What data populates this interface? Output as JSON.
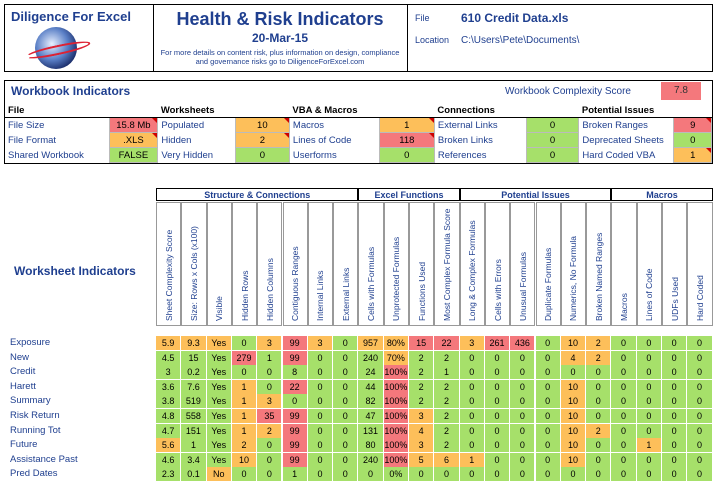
{
  "header": {
    "logo_title": "Diligence For Excel",
    "title": "Health & Risk Indicators",
    "date": "20-Mar-15",
    "note": "For more details on content risk, plus information on design, compliance and governance risks go to DiligenceForExcel.com",
    "file_label": "File",
    "file_value": "610 Credit Data.xls",
    "location_label": "Location",
    "location_value": "C:\\Users\\Pete\\Documents\\"
  },
  "workbook": {
    "title": "Workbook Indicators",
    "score_label": "Workbook Complexity Score",
    "score_value": "7.8",
    "groups": [
      {
        "title": "File",
        "items": [
          {
            "label": "File Size",
            "value": "15.8 Mb",
            "color": "red",
            "flag": true
          },
          {
            "label": "File Format",
            "value": ".XLS",
            "color": "yel",
            "flag": true
          },
          {
            "label": "Shared Workbook",
            "value": "FALSE",
            "color": "grn",
            "flag": false
          }
        ]
      },
      {
        "title": "Worksheets",
        "items": [
          {
            "label": "Populated",
            "value": "10",
            "color": "yel",
            "flag": true
          },
          {
            "label": "Hidden",
            "value": "2",
            "color": "yel",
            "flag": true
          },
          {
            "label": "Very Hidden",
            "value": "0",
            "color": "grn",
            "flag": false
          }
        ]
      },
      {
        "title": "VBA & Macros",
        "items": [
          {
            "label": "Macros",
            "value": "1",
            "color": "yel",
            "flag": true
          },
          {
            "label": "Lines of Code",
            "value": "118",
            "color": "red",
            "flag": true
          },
          {
            "label": "Userforms",
            "value": "0",
            "color": "grn",
            "flag": false
          }
        ]
      },
      {
        "title": "Connections",
        "items": [
          {
            "label": "External Links",
            "value": "0",
            "color": "grn",
            "flag": false
          },
          {
            "label": "Broken Links",
            "value": "0",
            "color": "grn",
            "flag": false
          },
          {
            "label": "References",
            "value": "0",
            "color": "grn",
            "flag": false
          }
        ]
      },
      {
        "title": "Potential Issues",
        "items": [
          {
            "label": "Broken Ranges",
            "value": "9",
            "color": "red",
            "flag": true
          },
          {
            "label": "Deprecated Sheets",
            "value": "0",
            "color": "grn",
            "flag": false
          },
          {
            "label": "Hard Coded VBA",
            "value": "1",
            "color": "yel",
            "flag": true
          }
        ]
      }
    ]
  },
  "worksheets": {
    "title": "Worksheet Indicators",
    "groups": [
      "Structure & Connections",
      "Excel Functions",
      "Potential Issues",
      "Macros"
    ],
    "columns": [
      "Sheet Complexity Score",
      "Size: Rows x Cols   (x100)",
      "Visible",
      "Hidden Rows",
      "Hidden Columns",
      "Contiguous Ranges",
      "Internal Links",
      "External Links",
      "Cells with Formulas",
      "Unprotected Formulas",
      "Functions Used",
      "Most Complex Formula Score",
      "Long & Complex Formulas",
      "Cells with Errors",
      "Unusual Formulas",
      "Duplicate Formulas",
      "Numerics, No Formula",
      "Broken Named Ranges",
      "Macros",
      "Lines of Code",
      "UDFs Used",
      "Hard Coded"
    ],
    "rows": [
      {
        "name": "Exposure",
        "values": [
          "5.9",
          "9.3",
          "Yes",
          "0",
          "3",
          "99",
          "3",
          "0",
          "957",
          "80%",
          "15",
          "22",
          "3",
          "261",
          "436",
          "0",
          "10",
          "2",
          "0",
          "0",
          "0",
          "0"
        ],
        "colors": [
          "yel",
          "yel",
          "yel",
          "grn",
          "yel",
          "red",
          "yel",
          "grn",
          "yel",
          "yel",
          "red",
          "red",
          "yel",
          "red",
          "red",
          "grn",
          "yel",
          "yel",
          "grn",
          "grn",
          "grn",
          "grn"
        ]
      },
      {
        "name": "New",
        "values": [
          "4.5",
          "15",
          "Yes",
          "279",
          "1",
          "99",
          "0",
          "0",
          "240",
          "70%",
          "2",
          "2",
          "0",
          "0",
          "0",
          "0",
          "4",
          "2",
          "0",
          "0",
          "0",
          "0"
        ],
        "colors": [
          "grn",
          "grn",
          "grn",
          "red",
          "grn",
          "red",
          "grn",
          "grn",
          "grn",
          "yel",
          "grn",
          "grn",
          "grn",
          "grn",
          "grn",
          "grn",
          "yel",
          "yel",
          "grn",
          "grn",
          "grn",
          "grn"
        ]
      },
      {
        "name": "Credit",
        "values": [
          "3",
          "0.2",
          "Yes",
          "0",
          "0",
          "8",
          "0",
          "0",
          "24",
          "100%",
          "2",
          "1",
          "0",
          "0",
          "0",
          "0",
          "0",
          "0",
          "0",
          "0",
          "0",
          "0"
        ],
        "colors": [
          "grn",
          "grn",
          "grn",
          "grn",
          "grn",
          "grn",
          "grn",
          "grn",
          "grn",
          "red",
          "grn",
          "grn",
          "grn",
          "grn",
          "grn",
          "grn",
          "grn",
          "grn",
          "grn",
          "grn",
          "grn",
          "grn"
        ]
      },
      {
        "name": "Harett",
        "values": [
          "3.6",
          "7.6",
          "Yes",
          "1",
          "0",
          "22",
          "0",
          "0",
          "44",
          "100%",
          "2",
          "2",
          "0",
          "0",
          "0",
          "0",
          "10",
          "0",
          "0",
          "0",
          "0",
          "0"
        ],
        "colors": [
          "grn",
          "grn",
          "grn",
          "yel",
          "grn",
          "red",
          "grn",
          "grn",
          "grn",
          "red",
          "grn",
          "grn",
          "grn",
          "grn",
          "grn",
          "grn",
          "yel",
          "grn",
          "grn",
          "grn",
          "grn",
          "grn"
        ]
      },
      {
        "name": "Summary",
        "values": [
          "3.8",
          "519",
          "Yes",
          "1",
          "3",
          "0",
          "0",
          "0",
          "82",
          "100%",
          "2",
          "2",
          "0",
          "0",
          "0",
          "0",
          "10",
          "0",
          "0",
          "0",
          "0",
          "0"
        ],
        "colors": [
          "grn",
          "grn",
          "grn",
          "yel",
          "yel",
          "grn",
          "grn",
          "grn",
          "grn",
          "red",
          "grn",
          "grn",
          "grn",
          "grn",
          "grn",
          "grn",
          "yel",
          "grn",
          "grn",
          "grn",
          "grn",
          "grn"
        ]
      },
      {
        "name": "Risk Return",
        "values": [
          "4.8",
          "558",
          "Yes",
          "1",
          "35",
          "99",
          "0",
          "0",
          "47",
          "100%",
          "3",
          "2",
          "0",
          "0",
          "0",
          "0",
          "10",
          "0",
          "0",
          "0",
          "0",
          "0"
        ],
        "colors": [
          "grn",
          "grn",
          "grn",
          "yel",
          "red",
          "red",
          "grn",
          "grn",
          "grn",
          "red",
          "yel",
          "grn",
          "grn",
          "grn",
          "grn",
          "grn",
          "yel",
          "grn",
          "grn",
          "grn",
          "grn",
          "grn"
        ]
      },
      {
        "name": "Running Tot",
        "values": [
          "4.7",
          "151",
          "Yes",
          "1",
          "2",
          "99",
          "0",
          "0",
          "131",
          "100%",
          "4",
          "2",
          "0",
          "0",
          "0",
          "0",
          "10",
          "2",
          "0",
          "0",
          "0",
          "0"
        ],
        "colors": [
          "grn",
          "grn",
          "grn",
          "yel",
          "yel",
          "red",
          "grn",
          "grn",
          "grn",
          "red",
          "yel",
          "grn",
          "grn",
          "grn",
          "grn",
          "grn",
          "yel",
          "yel",
          "grn",
          "grn",
          "grn",
          "grn"
        ]
      },
      {
        "name": "Future",
        "values": [
          "5.6",
          "1",
          "Yes",
          "2",
          "0",
          "99",
          "0",
          "0",
          "80",
          "100%",
          "3",
          "2",
          "0",
          "0",
          "0",
          "0",
          "10",
          "0",
          "0",
          "1",
          "0",
          "0"
        ],
        "colors": [
          "yel",
          "grn",
          "grn",
          "yel",
          "grn",
          "red",
          "grn",
          "grn",
          "grn",
          "red",
          "yel",
          "grn",
          "grn",
          "grn",
          "grn",
          "grn",
          "yel",
          "grn",
          "grn",
          "yel",
          "grn",
          "grn"
        ]
      },
      {
        "name": "Assistance Past",
        "values": [
          "4.6",
          "3.4",
          "Yes",
          "10",
          "0",
          "99",
          "0",
          "0",
          "240",
          "100%",
          "5",
          "6",
          "1",
          "0",
          "0",
          "0",
          "10",
          "0",
          "0",
          "0",
          "0",
          "0"
        ],
        "colors": [
          "grn",
          "grn",
          "grn",
          "yel",
          "grn",
          "red",
          "grn",
          "grn",
          "grn",
          "red",
          "yel",
          "yel",
          "yel",
          "grn",
          "grn",
          "grn",
          "yel",
          "grn",
          "grn",
          "grn",
          "grn",
          "grn"
        ]
      },
      {
        "name": "Pred Dates",
        "values": [
          "2.3",
          "0.1",
          "No",
          "0",
          "0",
          "1",
          "0",
          "0",
          "0",
          "0%",
          "0",
          "0",
          "0",
          "0",
          "0",
          "0",
          "0",
          "0",
          "0",
          "0",
          "0",
          "0"
        ],
        "colors": [
          "grn",
          "grn",
          "yel",
          "grn",
          "grn",
          "grn",
          "grn",
          "grn",
          "grn",
          "grn",
          "grn",
          "grn",
          "grn",
          "grn",
          "grn",
          "grn",
          "grn",
          "grn",
          "grn",
          "grn",
          "grn",
          "grn"
        ]
      }
    ]
  },
  "colors": {
    "red": "#f4787c",
    "yel": "#fdbf5a",
    "grn": "#a6e06a"
  }
}
